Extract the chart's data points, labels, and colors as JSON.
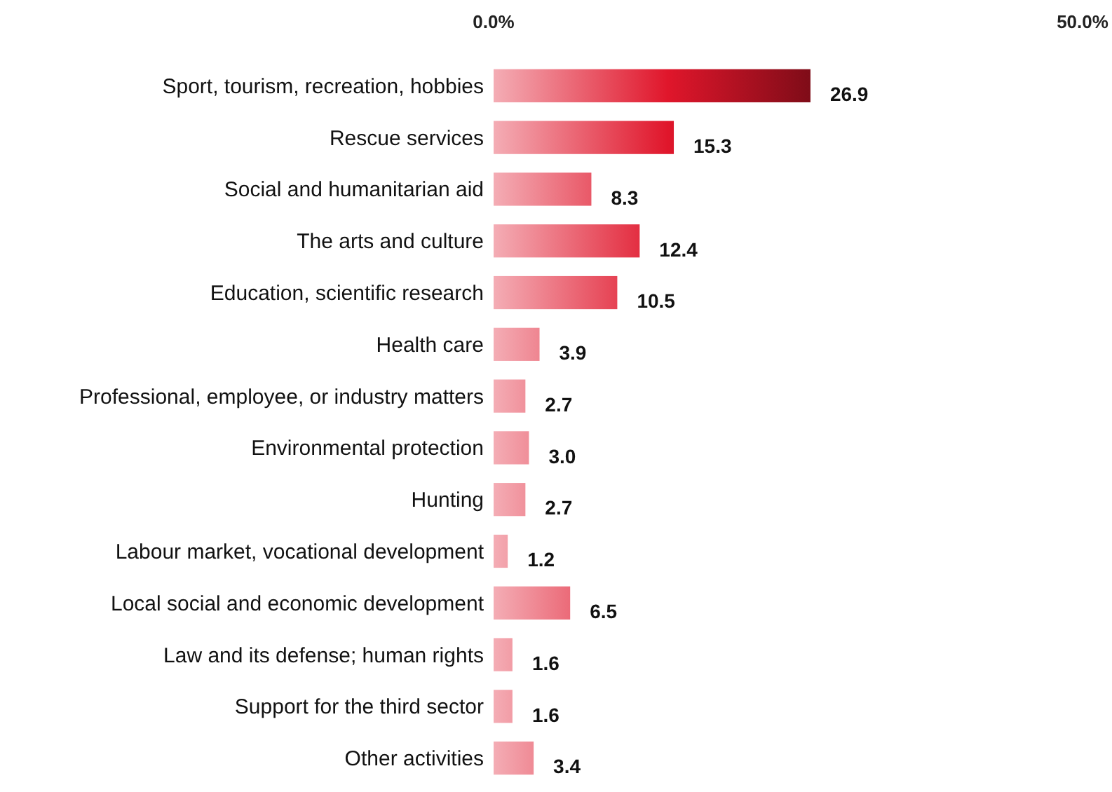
{
  "chart_data": {
    "type": "bar",
    "orientation": "horizontal",
    "categories": [
      "Sport, tourism, recreation, hobbies",
      "Rescue services",
      "Social and humanitarian aid",
      "The arts and culture",
      "Education, scientific research",
      "Health care",
      "Professional, employee, or industry matters",
      "Environmental protection",
      "Hunting",
      "Labour market, vocational development",
      "Local social and economic development",
      "Law and its defense; human rights",
      "Support for the third sector",
      "Other activities"
    ],
    "values": [
      26.9,
      15.3,
      8.3,
      12.4,
      10.5,
      3.9,
      2.7,
      3.0,
      2.7,
      1.2,
      6.5,
      1.6,
      1.6,
      3.4
    ],
    "color": "#e0162b",
    "xlim": [
      0,
      50
    ],
    "xticks": [
      {
        "value": 0,
        "label": "0.0%"
      },
      {
        "value": 50,
        "label": "50.0%"
      }
    ],
    "value_labels": [
      "26.9",
      "15.3",
      "8.3",
      "12.4",
      "10.5",
      "3.9",
      "2.7",
      "3.0",
      "2.7",
      "1.2",
      "6.5",
      "1.6",
      "1.6",
      "3.4"
    ]
  }
}
